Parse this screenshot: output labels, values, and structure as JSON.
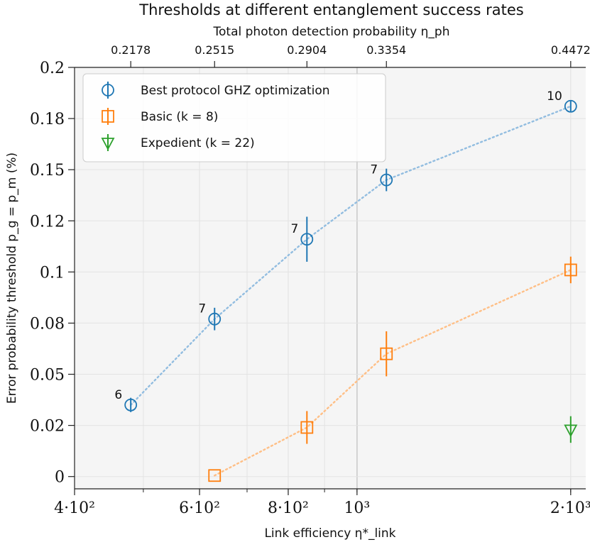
{
  "chart_data": {
    "type": "scatter",
    "title": "Thresholds at different entanglement success rates",
    "top_axis": {
      "label": "Total photon detection probability η_ph",
      "tick_values": [
        480,
        630,
        850,
        1100,
        2000
      ],
      "tick_labels": [
        "0.2178",
        "0.2515",
        "0.2904",
        "0.3354",
        "0.4472"
      ]
    },
    "xlabel": "Link efficiency η*_link",
    "x_scale": "log",
    "xlim": [
      400,
      2100
    ],
    "x_ticks": [
      {
        "value": 400,
        "label": "4·10²"
      },
      {
        "value": 600,
        "label": "6·10²"
      },
      {
        "value": 800,
        "label": "8·10²"
      },
      {
        "value": 1000,
        "label": "10³"
      },
      {
        "value": 2000,
        "label": "2·10³"
      }
    ],
    "ylabel": "Error probability threshold p_g = p_m (%)",
    "ylim": [
      -0.006,
      0.2
    ],
    "y_ticks": [
      {
        "value": 0,
        "label": "0"
      },
      {
        "value": 0.025,
        "label": "0.02"
      },
      {
        "value": 0.05,
        "label": "0.05"
      },
      {
        "value": 0.075,
        "label": "0.08"
      },
      {
        "value": 0.1,
        "label": "0.1"
      },
      {
        "value": 0.125,
        "label": "0.12"
      },
      {
        "value": 0.15,
        "label": "0.15"
      },
      {
        "value": 0.175,
        "label": "0.18"
      },
      {
        "value": 0.2,
        "label": "0.2"
      }
    ],
    "series": [
      {
        "name": "Best protocol GHZ optimization",
        "legend": "Best protocol GHZ optimization",
        "marker": "circle",
        "color": "#1f77b4",
        "line_color": "#92bde0",
        "points": [
          {
            "x": 480,
            "y": 0.035,
            "err": 0.0035,
            "label": "6"
          },
          {
            "x": 630,
            "y": 0.077,
            "err": 0.0055,
            "label": "7"
          },
          {
            "x": 850,
            "y": 0.116,
            "err": 0.011,
            "label": "7"
          },
          {
            "x": 1100,
            "y": 0.145,
            "err": 0.0055,
            "label": "7"
          },
          {
            "x": 2000,
            "y": 0.181,
            "err": 0.003,
            "label": "10"
          }
        ]
      },
      {
        "name": "Basic (k=8)",
        "legend": "Basic (k = 8)",
        "marker": "square",
        "color": "#ff7f0e",
        "line_color": "#ffbf86",
        "points": [
          {
            "x": 630,
            "y": 0.0005,
            "err": 0
          },
          {
            "x": 850,
            "y": 0.024,
            "err": 0.008
          },
          {
            "x": 1100,
            "y": 0.06,
            "err": 0.011
          },
          {
            "x": 2000,
            "y": 0.101,
            "err": 0.0065
          }
        ]
      },
      {
        "name": "Expedient (k=22)",
        "legend": "Expedient (k = 22)",
        "marker": "triangle-down",
        "color": "#2ca02c",
        "line_color": "#2ca02c",
        "points": [
          {
            "x": 2000,
            "y": 0.023,
            "err": 0.0065
          }
        ]
      }
    ],
    "legend_position": "top-left",
    "grid": true
  }
}
